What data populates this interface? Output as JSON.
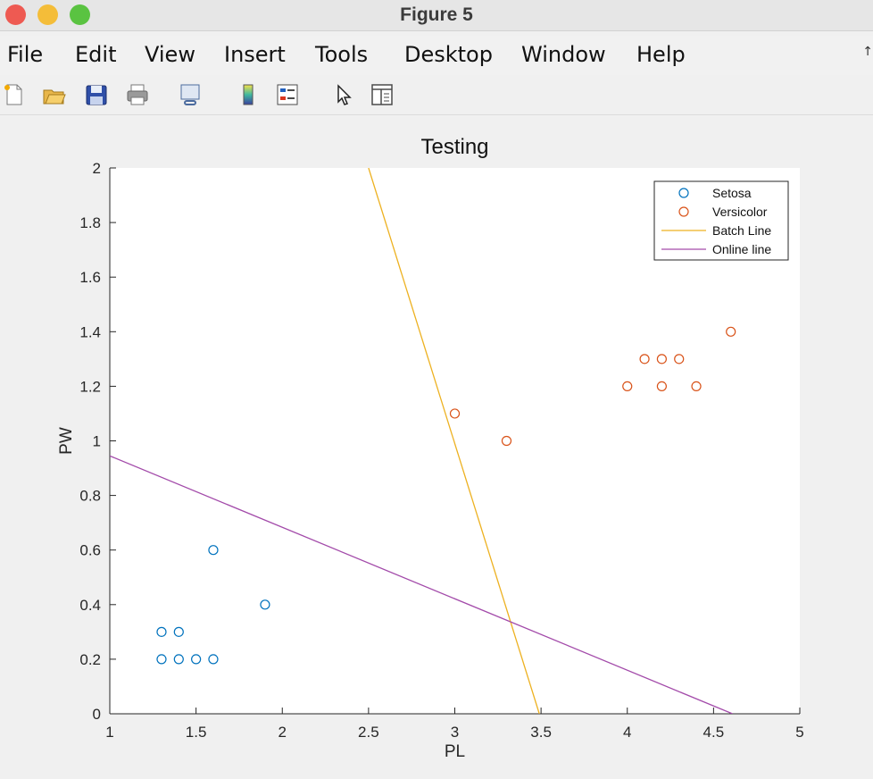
{
  "window": {
    "title": "Figure 5"
  },
  "menu": {
    "items": [
      "File",
      "Edit",
      "View",
      "Insert",
      "Tools",
      "Desktop",
      "Window",
      "Help"
    ],
    "overflow_glyph": "↑"
  },
  "toolbar": {
    "tools": [
      {
        "name": "new-figure-icon"
      },
      {
        "name": "open-file-icon"
      },
      {
        "name": "save-icon"
      },
      {
        "name": "print-icon"
      },
      {
        "name": "link-plot-icon"
      },
      {
        "name": "insert-colorbar-icon"
      },
      {
        "name": "insert-legend-icon"
      },
      {
        "name": "edit-plot-pointer-icon"
      },
      {
        "name": "property-inspector-icon"
      }
    ]
  },
  "colors": {
    "setosa": "#0072BD",
    "versicolor": "#D95319",
    "batch_line": "#EDB120",
    "online_line": "#A34BAA"
  },
  "chart_data": {
    "type": "scatter",
    "title": "Testing",
    "xlabel": "PL",
    "ylabel": "PW",
    "xlim": [
      1,
      5
    ],
    "ylim": [
      0,
      2
    ],
    "xticks": [
      "1",
      "1.5",
      "2",
      "2.5",
      "3",
      "3.5",
      "4",
      "4.5",
      "5"
    ],
    "yticks": [
      "0",
      "0.2",
      "0.4",
      "0.6",
      "0.8",
      "1",
      "1.2",
      "1.4",
      "1.6",
      "1.8",
      "2"
    ],
    "legend_position": "top-right",
    "series": [
      {
        "name": "Setosa",
        "kind": "scatter",
        "color": "#0072BD",
        "points": [
          [
            1.3,
            0.3
          ],
          [
            1.4,
            0.3
          ],
          [
            1.3,
            0.2
          ],
          [
            1.4,
            0.2
          ],
          [
            1.5,
            0.2
          ],
          [
            1.6,
            0.2
          ],
          [
            1.6,
            0.6
          ],
          [
            1.9,
            0.4
          ]
        ]
      },
      {
        "name": "Versicolor",
        "kind": "scatter",
        "color": "#D95319",
        "points": [
          [
            3.0,
            1.1
          ],
          [
            3.3,
            1.0
          ],
          [
            4.0,
            1.2
          ],
          [
            4.1,
            1.3
          ],
          [
            4.2,
            1.3
          ],
          [
            4.3,
            1.3
          ],
          [
            4.2,
            1.2
          ],
          [
            4.4,
            1.2
          ],
          [
            4.6,
            1.4
          ]
        ]
      },
      {
        "name": "Batch Line",
        "kind": "line",
        "color": "#EDB120",
        "points": [
          [
            2.5,
            2.0
          ],
          [
            3.49,
            0.0
          ]
        ]
      },
      {
        "name": "Online line",
        "kind": "line",
        "color": "#A34BAA",
        "points": [
          [
            1.0,
            0.945
          ],
          [
            4.61,
            0.0
          ]
        ]
      }
    ]
  }
}
